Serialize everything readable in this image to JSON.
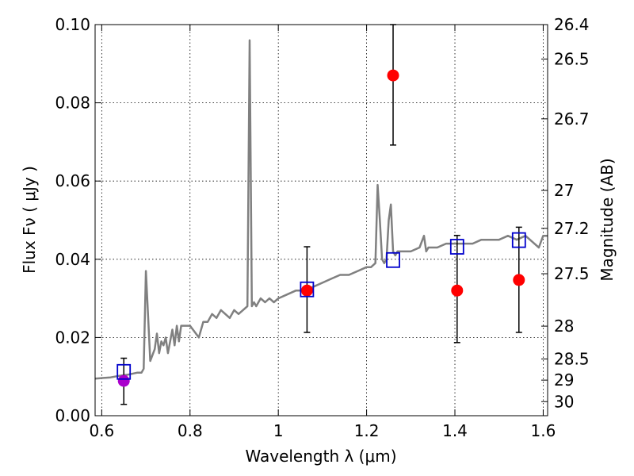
{
  "chart_data": {
    "type": "scatter",
    "title": "",
    "xlabel": "Wavelength  λ (μm)",
    "ylabel": "Flux  Fν  ( μJy )",
    "y2label": "Magnitude (AB)",
    "xlim": [
      0.585,
      1.61
    ],
    "ylim": [
      0.0,
      0.1
    ],
    "grid": true,
    "x_ticks": [
      0.6,
      0.8,
      1.0,
      1.2,
      1.4,
      1.6
    ],
    "x_tick_labels": [
      "0.6",
      "0.8",
      "1",
      "1.2",
      "1.4",
      "1.6"
    ],
    "y_ticks": [
      0.0,
      0.02,
      0.04,
      0.06,
      0.08,
      0.1
    ],
    "y_tick_labels": [
      "0.00",
      "0.02",
      "0.04",
      "0.06",
      "0.08",
      "0.10"
    ],
    "y2_ticks": [
      {
        "label": "26.4",
        "flux": 0.1
      },
      {
        "label": "26.5",
        "flux": 0.0912
      },
      {
        "label": "26.7",
        "flux": 0.0759
      },
      {
        "label": "27",
        "flux": 0.0576
      },
      {
        "label": "27.2",
        "flux": 0.0479
      },
      {
        "label": "27.5",
        "flux": 0.0363
      },
      {
        "label": "28",
        "flux": 0.0229
      },
      {
        "label": "28.5",
        "flux": 0.0145
      },
      {
        "label": "29",
        "flux": 0.0091
      },
      {
        "label": "30",
        "flux": 0.0036
      }
    ],
    "series": [
      {
        "kind": "line",
        "color": "#808080",
        "x": [
          0.585,
          0.62,
          0.64,
          0.66,
          0.68,
          0.69,
          0.695,
          0.7,
          0.71,
          0.72,
          0.725,
          0.73,
          0.735,
          0.74,
          0.745,
          0.75,
          0.76,
          0.765,
          0.77,
          0.775,
          0.78,
          0.79,
          0.8,
          0.82,
          0.83,
          0.84,
          0.85,
          0.86,
          0.87,
          0.88,
          0.89,
          0.9,
          0.91,
          0.92,
          0.93,
          0.935,
          0.94,
          0.945,
          0.95,
          0.96,
          0.97,
          0.98,
          0.99,
          1.0,
          1.02,
          1.04,
          1.06,
          1.08,
          1.1,
          1.12,
          1.14,
          1.16,
          1.18,
          1.2,
          1.21,
          1.22,
          1.225,
          1.23,
          1.235,
          1.24,
          1.245,
          1.25,
          1.255,
          1.26,
          1.265,
          1.27,
          1.28,
          1.3,
          1.32,
          1.33,
          1.335,
          1.34,
          1.36,
          1.38,
          1.4,
          1.42,
          1.44,
          1.46,
          1.48,
          1.5,
          1.52,
          1.54,
          1.56,
          1.58,
          1.59,
          1.6,
          1.61
        ],
        "y": [
          0.0095,
          0.0098,
          0.0102,
          0.0105,
          0.011,
          0.011,
          0.012,
          0.037,
          0.014,
          0.017,
          0.021,
          0.016,
          0.019,
          0.018,
          0.02,
          0.016,
          0.022,
          0.018,
          0.023,
          0.019,
          0.023,
          0.023,
          0.023,
          0.02,
          0.024,
          0.024,
          0.026,
          0.025,
          0.027,
          0.026,
          0.025,
          0.027,
          0.026,
          0.027,
          0.028,
          0.096,
          0.028,
          0.029,
          0.028,
          0.03,
          0.029,
          0.03,
          0.029,
          0.03,
          0.031,
          0.032,
          0.032,
          0.033,
          0.034,
          0.035,
          0.036,
          0.036,
          0.037,
          0.038,
          0.038,
          0.039,
          0.059,
          0.05,
          0.04,
          0.039,
          0.04,
          0.05,
          0.054,
          0.042,
          0.041,
          0.042,
          0.042,
          0.042,
          0.043,
          0.046,
          0.042,
          0.043,
          0.043,
          0.044,
          0.044,
          0.044,
          0.044,
          0.045,
          0.045,
          0.045,
          0.046,
          0.045,
          0.046,
          0.044,
          0.043,
          0.046,
          0.046
        ]
      },
      {
        "kind": "points",
        "marker": "circle",
        "color": "#ff0000",
        "x": [
          1.065,
          1.26,
          1.405,
          1.545
        ],
        "y": [
          0.032,
          0.087,
          0.032,
          0.0347
        ],
        "yerr_low": [
          0.0213,
          0.0692,
          0.0187,
          0.0213
        ],
        "yerr_high": [
          0.0432,
          0.1,
          0.0461,
          0.0482
        ]
      },
      {
        "kind": "points",
        "marker": "circle",
        "color": "#aa00cc",
        "x": [
          0.65
        ],
        "y": [
          0.0089
        ],
        "yerr_low": [
          0.0029
        ],
        "yerr_high": [
          0.0147
        ]
      },
      {
        "kind": "points",
        "marker": "square",
        "color": "#0000cc",
        "x": [
          0.65,
          1.065,
          1.26,
          1.405,
          1.545
        ],
        "y": [
          0.0112,
          0.0323,
          0.0398,
          0.0432,
          0.0449
        ]
      }
    ]
  }
}
